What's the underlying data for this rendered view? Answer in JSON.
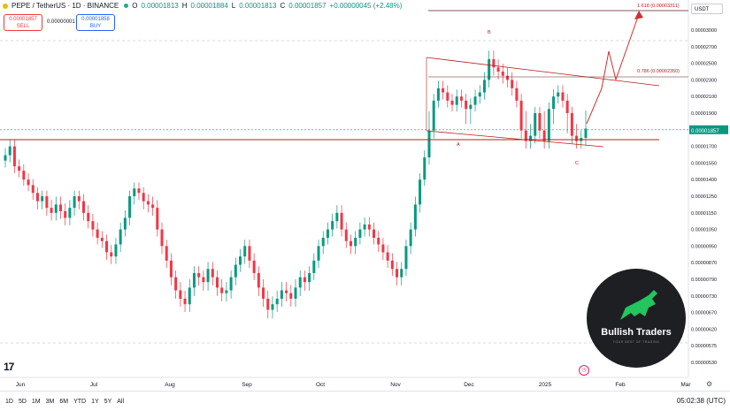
{
  "header": {
    "symbol": "PEPE / TetherUS · 1D · BINANCE",
    "o_label": "O",
    "o_value": "0.00001813",
    "h_label": "H",
    "h_value": "0.00001884",
    "l_label": "L",
    "l_value": "0.00001813",
    "c_label": "C",
    "c_value": "0.00001857",
    "change": "+0.00000045 (+2.48%)"
  },
  "trade": {
    "sell_price": "0.00001857",
    "sell_label": "SELL",
    "spread": "0.00000001",
    "buy_price": "0.00001858",
    "buy_label": "BUY"
  },
  "currency": "USDT",
  "clock": "05:02:38 (UTC)",
  "timeframes": [
    "1D",
    "5D",
    "1M",
    "3M",
    "6M",
    "YTD",
    "1Y",
    "5Y",
    "All"
  ],
  "logo": {
    "title": "Bullish Traders",
    "subtitle": "YOUR BEST OF TRADING",
    "colors": {
      "bg": "#1e1f22",
      "accent": "#22c55e"
    }
  },
  "colors": {
    "up": "#089981",
    "down": "#f23645",
    "line": "#b71c1c",
    "grid": "#f0f3fa"
  },
  "chart_data": {
    "type": "candlestick",
    "x_ticks": [
      "Jun",
      "Jul",
      "Aug",
      "Sep",
      "Oct",
      "Nov",
      "Dec",
      "2025",
      "Feb",
      "Mar"
    ],
    "y_ticks": [
      "0.00003000",
      "0.00002700",
      "0.00002500",
      "0.00002300",
      "0.00002100",
      "0.00001900",
      "0.00001857",
      "0.00001700",
      "0.00001550",
      "0.00001400",
      "0.00001250",
      "0.00001150",
      "0.00001050",
      "0.00000950",
      "0.00000870",
      "0.00000790",
      "0.00000730",
      "0.00000670",
      "0.00000620",
      "0.00000575",
      "0.00000530"
    ],
    "last_price": "0.00001857",
    "annotations": [
      {
        "text": "1.618 (0.00003311)"
      },
      {
        "text": "0.786 (0.00002350)"
      },
      {
        "text": "B"
      },
      {
        "text": "A"
      },
      {
        "text": "C"
      }
    ],
    "closes": [
      1.62,
      1.7,
      1.52,
      1.48,
      1.4,
      1.35,
      1.28,
      1.22,
      1.25,
      1.18,
      1.15,
      1.2,
      1.16,
      1.12,
      1.18,
      1.25,
      1.22,
      1.15,
      1.1,
      1.05,
      1.0,
      0.98,
      0.92,
      0.9,
      0.96,
      1.05,
      1.12,
      1.25,
      1.32,
      1.28,
      1.22,
      1.2,
      1.18,
      1.05,
      0.95,
      0.88,
      0.8,
      0.75,
      0.72,
      0.7,
      0.76,
      0.82,
      0.8,
      0.78,
      0.84,
      0.8,
      0.76,
      0.74,
      0.75,
      0.8,
      0.86,
      0.9,
      0.95,
      0.88,
      0.82,
      0.76,
      0.72,
      0.68,
      0.7,
      0.72,
      0.75,
      0.74,
      0.72,
      0.76,
      0.8,
      0.78,
      0.82,
      0.88,
      0.95,
      1.0,
      1.05,
      1.1,
      1.15,
      1.05,
      0.98,
      0.95,
      1.0,
      1.05,
      1.08,
      1.05,
      1.0,
      0.96,
      0.92,
      0.88,
      0.84,
      0.8,
      0.84,
      0.95,
      1.05,
      1.2,
      1.4,
      1.6,
      1.85,
      2.05,
      2.2,
      2.15,
      2.05,
      2.0,
      2.1,
      2.05,
      1.95,
      2.0,
      2.1,
      2.15,
      2.3,
      2.55,
      2.45,
      2.4,
      2.35,
      2.3,
      2.2,
      2.05,
      1.85,
      1.75,
      1.8,
      1.9,
      1.85,
      1.75,
      1.95,
      2.1,
      2.15,
      2.05,
      1.9,
      1.8,
      1.75,
      1.78,
      1.86
    ]
  }
}
